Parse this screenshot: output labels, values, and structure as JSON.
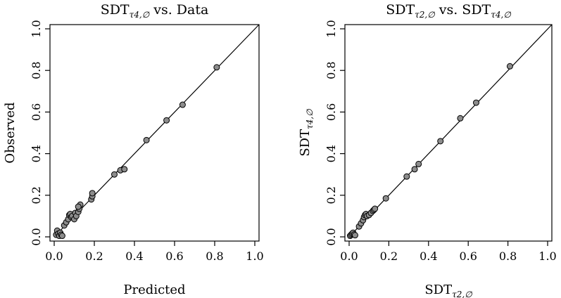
{
  "chart_data": [
    {
      "type": "scatter",
      "title_main": "SDT",
      "title_sub": "τ4,∅",
      "title_rest": " vs. Data",
      "xlabel_main": "Predicted",
      "xlabel_sub": "",
      "ylabel_main": "Observed",
      "ylabel_sub": "",
      "xlim": [
        0,
        1
      ],
      "ylim": [
        0,
        1
      ],
      "ticks": [
        "0.0",
        "0.2",
        "0.4",
        "0.6",
        "0.8",
        "1.0"
      ],
      "reference_line": "y = x",
      "point_color": "#8c8c8c",
      "points": [
        {
          "x": 0.01,
          "y": 0.01
        },
        {
          "x": 0.015,
          "y": 0.03
        },
        {
          "x": 0.02,
          "y": 0.015
        },
        {
          "x": 0.025,
          "y": 0.005
        },
        {
          "x": 0.03,
          "y": 0.02
        },
        {
          "x": 0.035,
          "y": 0.01
        },
        {
          "x": 0.04,
          "y": 0.005
        },
        {
          "x": 0.05,
          "y": 0.055
        },
        {
          "x": 0.06,
          "y": 0.07
        },
        {
          "x": 0.07,
          "y": 0.085
        },
        {
          "x": 0.075,
          "y": 0.105
        },
        {
          "x": 0.08,
          "y": 0.11
        },
        {
          "x": 0.085,
          "y": 0.095
        },
        {
          "x": 0.09,
          "y": 0.1
        },
        {
          "x": 0.1,
          "y": 0.085
        },
        {
          "x": 0.105,
          "y": 0.115
        },
        {
          "x": 0.11,
          "y": 0.1
        },
        {
          "x": 0.12,
          "y": 0.12
        },
        {
          "x": 0.125,
          "y": 0.135
        },
        {
          "x": 0.13,
          "y": 0.155
        },
        {
          "x": 0.12,
          "y": 0.145
        },
        {
          "x": 0.185,
          "y": 0.18
        },
        {
          "x": 0.19,
          "y": 0.195
        },
        {
          "x": 0.19,
          "y": 0.21
        },
        {
          "x": 0.3,
          "y": 0.3
        },
        {
          "x": 0.33,
          "y": 0.32
        },
        {
          "x": 0.35,
          "y": 0.325
        },
        {
          "x": 0.46,
          "y": 0.465
        },
        {
          "x": 0.56,
          "y": 0.56
        },
        {
          "x": 0.64,
          "y": 0.635
        },
        {
          "x": 0.81,
          "y": 0.815
        }
      ]
    },
    {
      "type": "scatter",
      "title_main": "SDT",
      "title_sub": "τ2,∅",
      "title_rest": " vs. SDT",
      "title_sub2": "τ4,∅",
      "xlabel_main": "SDT",
      "xlabel_sub": "τ2,∅",
      "ylabel_main": "SDT",
      "ylabel_sub": "τ4,∅",
      "xlim": [
        0,
        1
      ],
      "ylim": [
        0,
        1
      ],
      "ticks": [
        "0.0",
        "0.2",
        "0.4",
        "0.6",
        "0.8",
        "1.0"
      ],
      "reference_line": "y = x",
      "point_color": "#8c8c8c",
      "points": [
        {
          "x": 0.005,
          "y": 0.005
        },
        {
          "x": 0.01,
          "y": 0.01
        },
        {
          "x": 0.015,
          "y": 0.015
        },
        {
          "x": 0.02,
          "y": 0.02
        },
        {
          "x": 0.025,
          "y": 0.012
        },
        {
          "x": 0.03,
          "y": 0.008
        },
        {
          "x": 0.05,
          "y": 0.05
        },
        {
          "x": 0.06,
          "y": 0.065
        },
        {
          "x": 0.07,
          "y": 0.08
        },
        {
          "x": 0.075,
          "y": 0.095
        },
        {
          "x": 0.08,
          "y": 0.105
        },
        {
          "x": 0.085,
          "y": 0.11
        },
        {
          "x": 0.09,
          "y": 0.1
        },
        {
          "x": 0.1,
          "y": 0.105
        },
        {
          "x": 0.11,
          "y": 0.115
        },
        {
          "x": 0.12,
          "y": 0.125
        },
        {
          "x": 0.125,
          "y": 0.13
        },
        {
          "x": 0.13,
          "y": 0.135
        },
        {
          "x": 0.185,
          "y": 0.185
        },
        {
          "x": 0.29,
          "y": 0.29
        },
        {
          "x": 0.33,
          "y": 0.325
        },
        {
          "x": 0.35,
          "y": 0.35
        },
        {
          "x": 0.46,
          "y": 0.46
        },
        {
          "x": 0.56,
          "y": 0.57
        },
        {
          "x": 0.64,
          "y": 0.645
        },
        {
          "x": 0.81,
          "y": 0.82
        }
      ]
    }
  ]
}
